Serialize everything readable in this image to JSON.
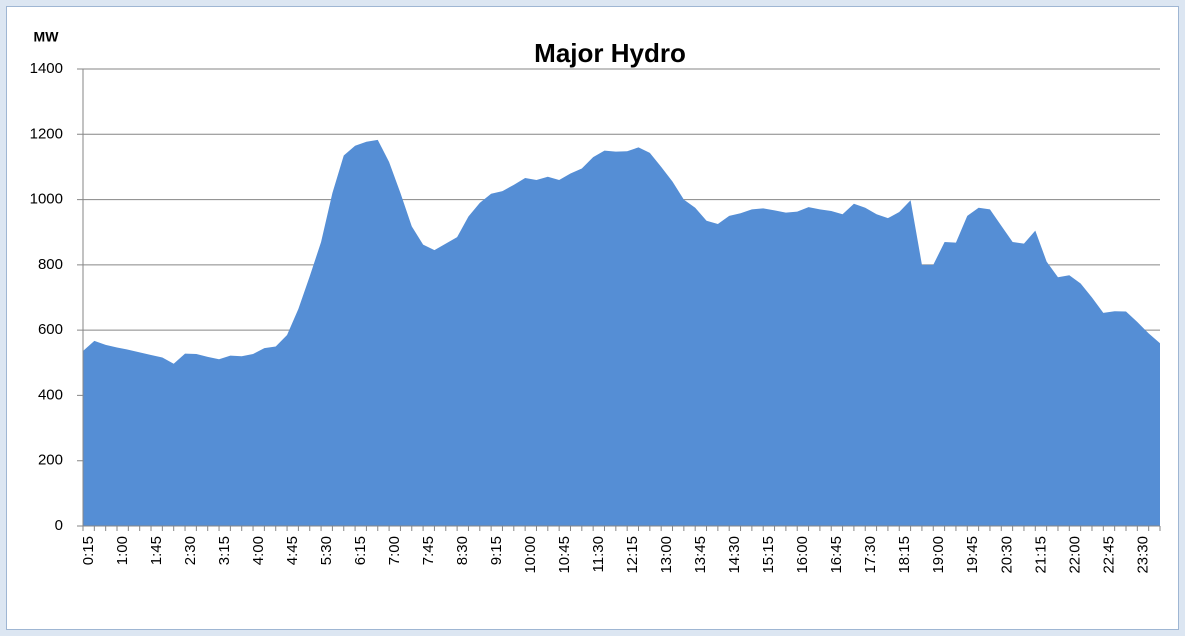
{
  "chart_data": {
    "type": "area",
    "title": "Major Hydro",
    "y_label": "MW",
    "color": "#558ed5",
    "categories": [
      "0:15",
      null,
      null,
      "1:00",
      null,
      null,
      "1:45",
      null,
      null,
      "2:30",
      null,
      null,
      "3:15",
      null,
      null,
      "4:00",
      null,
      null,
      "4:45",
      null,
      null,
      "5:30",
      null,
      null,
      "6:15",
      null,
      null,
      "7:00",
      null,
      null,
      "7:45",
      null,
      null,
      "8:30",
      null,
      null,
      "9:15",
      null,
      null,
      "10:00",
      null,
      null,
      "10:45",
      null,
      null,
      "11:30",
      null,
      null,
      "12:15",
      null,
      null,
      "13:00",
      null,
      null,
      "13:45",
      null,
      null,
      "14:30",
      null,
      null,
      "15:15",
      null,
      null,
      "16:00",
      null,
      null,
      "16:45",
      null,
      null,
      "17:30",
      null,
      null,
      "18:15",
      null,
      null,
      "19:00",
      null,
      null,
      "19:45",
      null,
      null,
      "20:30",
      null,
      null,
      "21:15",
      null,
      null,
      "22:00",
      null,
      null,
      "22:45",
      null,
      null,
      "23:30",
      null,
      null
    ],
    "values": [
      536,
      567,
      555,
      547,
      540,
      532,
      524,
      516,
      497,
      528,
      527,
      518,
      511,
      522,
      520,
      527,
      545,
      550,
      585,
      665,
      765,
      870,
      1020,
      1135,
      1165,
      1177,
      1183,
      1115,
      1020,
      918,
      862,
      845,
      865,
      885,
      948,
      990,
      1018,
      1026,
      1045,
      1066,
      1060,
      1070,
      1060,
      1080,
      1095,
      1130,
      1150,
      1147,
      1148,
      1160,
      1143,
      1100,
      1055,
      1000,
      975,
      935,
      925,
      950,
      958,
      970,
      973,
      967,
      960,
      963,
      977,
      970,
      965,
      955,
      987,
      975,
      955,
      943,
      962,
      998,
      800,
      800,
      870,
      868,
      950,
      975,
      970,
      920,
      870,
      865,
      905,
      810,
      762,
      768,
      743,
      700,
      653,
      658,
      657,
      625,
      590,
      560
    ],
    "ylim": [
      0,
      1400
    ],
    "yticks": [
      0,
      200,
      400,
      600,
      800,
      1000,
      1200,
      1400
    ],
    "grid": true
  }
}
